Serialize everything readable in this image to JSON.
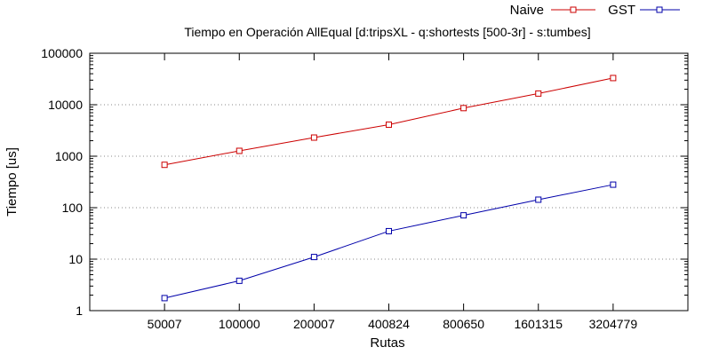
{
  "chart_data": {
    "type": "line",
    "title": "Tiempo en Operación AllEqual [d:tripsXL - q:shortests [500-3r] - s:tumbes]",
    "xlabel": "Rutas",
    "ylabel": "Tiempo [us]",
    "yscale": "log",
    "ylim": [
      1,
      100000
    ],
    "y_ticks": [
      "1",
      "10",
      "100",
      "1000",
      "10000",
      "100000"
    ],
    "categories": [
      "50007",
      "100000",
      "200007",
      "400824",
      "800650",
      "1601315",
      "3204779"
    ],
    "grid": "horizontal dotted",
    "legend_position": "top-right",
    "series": [
      {
        "name": "Naive",
        "color": "#cc0000",
        "marker": "square",
        "values": [
          680,
          1270,
          2300,
          4100,
          8600,
          16500,
          33000
        ]
      },
      {
        "name": "GST",
        "color": "#0000aa",
        "marker": "square",
        "values": [
          1.75,
          3.8,
          11,
          35,
          71,
          143,
          280
        ]
      }
    ]
  }
}
